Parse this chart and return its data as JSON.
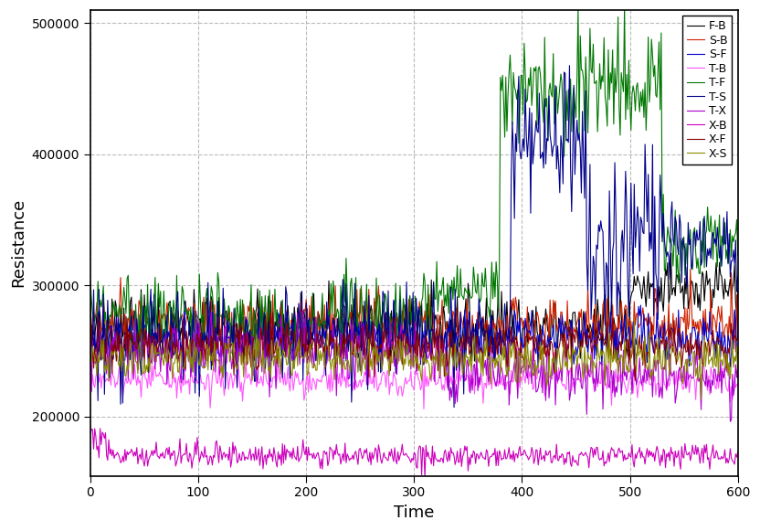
{
  "title": "",
  "xlabel": "Time",
  "ylabel": "Resistance",
  "xlim": [
    0,
    600
  ],
  "ylim": [
    155000,
    510000
  ],
  "xticks": [
    0,
    100,
    200,
    300,
    400,
    500,
    600
  ],
  "yticks": [
    200000,
    300000,
    400000,
    500000
  ],
  "figsize": [
    8.32,
    5.81
  ],
  "dpi": 100,
  "series_order": [
    "F-B",
    "S-B",
    "S-F",
    "T-B",
    "T-F",
    "T-S",
    "T-X",
    "X-B",
    "X-F",
    "X-S"
  ],
  "series": {
    "F-B": {
      "color": "#000000",
      "lw": 0.8,
      "segments": [
        {
          "x0": 0,
          "x1": 370,
          "level": 270000,
          "noise": 12000,
          "spike_prob": 0.15,
          "spike_amp": 15000
        },
        {
          "x0": 370,
          "x1": 500,
          "level": 270000,
          "noise": 12000,
          "spike_prob": 0.15,
          "spike_amp": 15000
        },
        {
          "x0": 500,
          "x1": 600,
          "level": 298000,
          "noise": 10000,
          "spike_prob": 0.12,
          "spike_amp": 12000
        }
      ]
    },
    "S-B": {
      "color": "#cc2200",
      "lw": 0.8,
      "segments": [
        {
          "x0": 0,
          "x1": 600,
          "level": 272000,
          "noise": 10000,
          "spike_prob": 0.15,
          "spike_amp": 15000
        }
      ]
    },
    "S-F": {
      "color": "#0000cc",
      "lw": 0.8,
      "segments": [
        {
          "x0": 0,
          "x1": 600,
          "level": 260000,
          "noise": 10000,
          "spike_prob": 0.15,
          "spike_amp": 15000
        }
      ]
    },
    "T-B": {
      "color": "#ff55ff",
      "lw": 0.8,
      "segments": [
        {
          "x0": 0,
          "x1": 600,
          "level": 228000,
          "noise": 6000,
          "spike_prob": 0.1,
          "spike_amp": 8000
        }
      ]
    },
    "T-F": {
      "color": "#007700",
      "lw": 0.8,
      "segments": [
        {
          "x0": 0,
          "x1": 30,
          "level": 280000,
          "noise": 5000,
          "spike_prob": 0.3,
          "spike_amp": 25000
        },
        {
          "x0": 30,
          "x1": 130,
          "level": 280000,
          "noise": 5000,
          "spike_prob": 0.5,
          "spike_amp": 30000
        },
        {
          "x0": 130,
          "x1": 220,
          "level": 268000,
          "noise": 5000,
          "spike_prob": 0.4,
          "spike_amp": 28000
        },
        {
          "x0": 220,
          "x1": 320,
          "level": 278000,
          "noise": 5000,
          "spike_prob": 0.5,
          "spike_amp": 30000
        },
        {
          "x0": 320,
          "x1": 380,
          "level": 295000,
          "noise": 5000,
          "spike_prob": 0.4,
          "spike_amp": 20000
        },
        {
          "x0": 380,
          "x1": 450,
          "level": 448000,
          "noise": 8000,
          "spike_prob": 0.5,
          "spike_amp": 40000
        },
        {
          "x0": 450,
          "x1": 530,
          "level": 453000,
          "noise": 8000,
          "spike_prob": 0.5,
          "spike_amp": 40000
        },
        {
          "x0": 530,
          "x1": 600,
          "level": 335000,
          "noise": 8000,
          "spike_prob": 0.4,
          "spike_amp": 25000
        }
      ]
    },
    "T-S": {
      "color": "#00008b",
      "lw": 0.8,
      "segments": [
        {
          "x0": 0,
          "x1": 390,
          "level": 260000,
          "noise": 8000,
          "spike_prob": 0.3,
          "spike_amp": 40000
        },
        {
          "x0": 390,
          "x1": 460,
          "level": 408000,
          "noise": 10000,
          "spike_prob": 0.4,
          "spike_amp": 50000
        },
        {
          "x0": 460,
          "x1": 530,
          "level": 340000,
          "noise": 10000,
          "spike_prob": 0.5,
          "spike_amp": 60000
        },
        {
          "x0": 530,
          "x1": 600,
          "level": 330000,
          "noise": 10000,
          "spike_prob": 0.4,
          "spike_amp": 30000
        }
      ]
    },
    "T-X": {
      "color": "#aa00cc",
      "lw": 0.8,
      "segments": [
        {
          "x0": 0,
          "x1": 330,
          "level": 250000,
          "noise": 8000,
          "spike_prob": 0.2,
          "spike_amp": 25000
        },
        {
          "x0": 330,
          "x1": 600,
          "level": 232000,
          "noise": 8000,
          "spike_prob": 0.3,
          "spike_amp": 20000
        }
      ]
    },
    "X-B": {
      "color": "#cc00bb",
      "lw": 0.8,
      "segments": [
        {
          "x0": 0,
          "x1": 15,
          "level": 185000,
          "noise": 5000,
          "spike_prob": 0.2,
          "spike_amp": 8000
        },
        {
          "x0": 15,
          "x1": 330,
          "level": 170000,
          "noise": 4000,
          "spike_prob": 0.15,
          "spike_amp": 8000
        },
        {
          "x0": 330,
          "x1": 600,
          "level": 170000,
          "noise": 4000,
          "spike_prob": 0.15,
          "spike_amp": 6000
        }
      ]
    },
    "X-F": {
      "color": "#880000",
      "lw": 0.8,
      "segments": [
        {
          "x0": 0,
          "x1": 600,
          "level": 255000,
          "noise": 8000,
          "spike_prob": 0.15,
          "spike_amp": 12000
        }
      ]
    },
    "X-S": {
      "color": "#888800",
      "lw": 0.8,
      "segments": [
        {
          "x0": 0,
          "x1": 600,
          "level": 244000,
          "noise": 8000,
          "spike_prob": 0.15,
          "spike_amp": 12000
        }
      ]
    }
  },
  "grid_color": "#aaaaaa",
  "grid_linestyle": "--",
  "legend_fontsize": 9,
  "axis_label_fontsize": 13,
  "tick_labelsize": 10
}
